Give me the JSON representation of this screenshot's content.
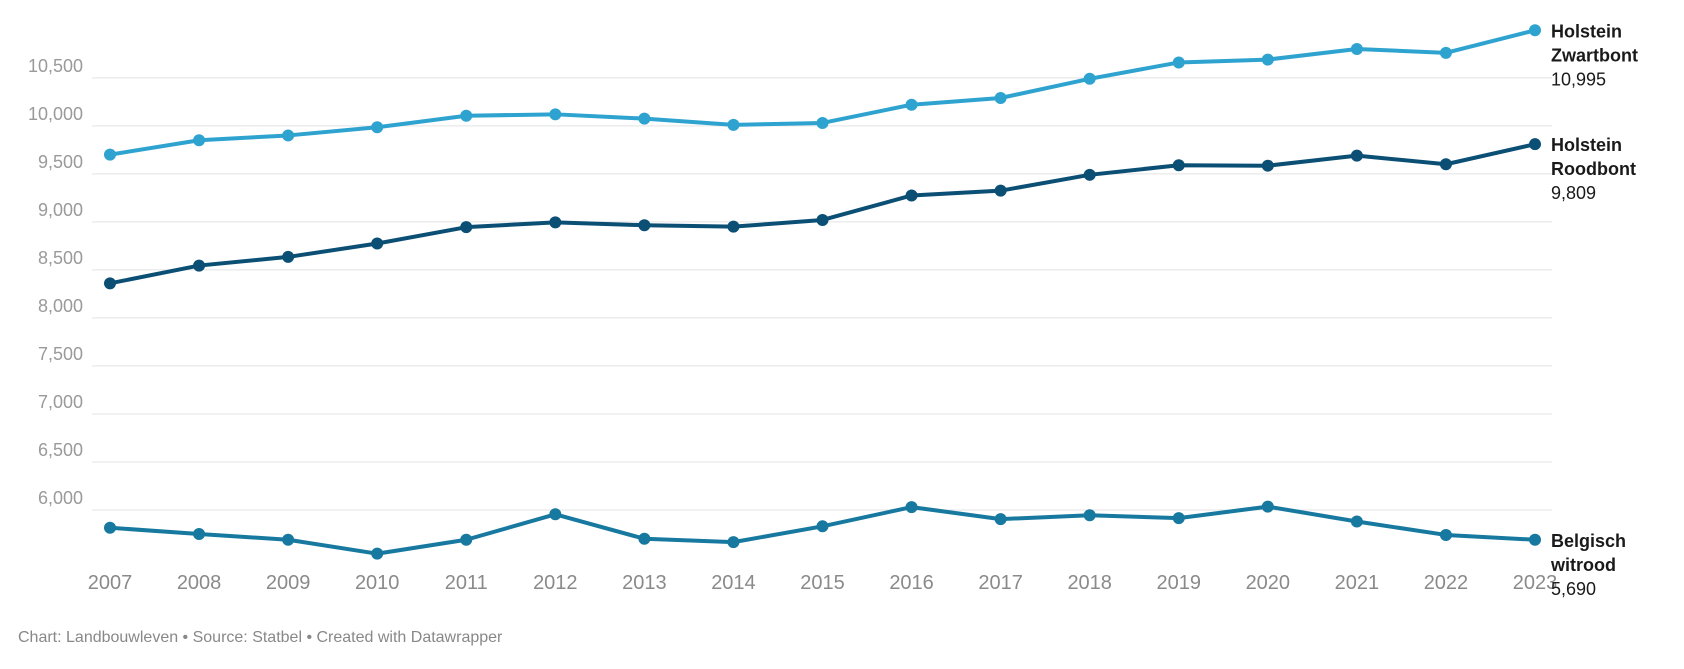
{
  "chart_data": {
    "type": "line",
    "x": [
      2007,
      2008,
      2009,
      2010,
      2011,
      2012,
      2013,
      2014,
      2015,
      2016,
      2017,
      2018,
      2019,
      2020,
      2021,
      2022,
      2023
    ],
    "x_tick_labels": [
      "2007",
      "2008",
      "2009",
      "2010",
      "2011",
      "2012",
      "2013",
      "2014",
      "2015",
      "2016",
      "2017",
      "2018",
      "2019",
      "2020",
      "2021",
      "2022",
      "2023"
    ],
    "y_ticks": [
      6000,
      6500,
      7000,
      7500,
      8000,
      8500,
      9000,
      9500,
      10000,
      10500
    ],
    "y_tick_labels": [
      "6,000",
      "6,500",
      "7,000",
      "7,500",
      "8,000",
      "8,500",
      "9,000",
      "9,500",
      "10,000",
      "10,500"
    ],
    "ylim": [
      5500,
      11050
    ],
    "grid": true,
    "series": [
      {
        "name_lines": [
          "Holstein",
          "Zwartbont"
        ],
        "end_label": "10,995",
        "color": "#2ea3cf",
        "values": [
          9700,
          9850,
          9900,
          9985,
          10105,
          10120,
          10075,
          10010,
          10030,
          10220,
          10290,
          10490,
          10660,
          10690,
          10800,
          10760,
          10995
        ]
      },
      {
        "name_lines": [
          "Holstein",
          "Roodbont"
        ],
        "end_label": "9,809",
        "color": "#0b4f75",
        "values": [
          8360,
          8545,
          8635,
          8775,
          8945,
          8995,
          8965,
          8950,
          9020,
          9275,
          9325,
          9490,
          9590,
          9585,
          9690,
          9600,
          9809
        ]
      },
      {
        "name_lines": [
          "Belgisch",
          "witrood"
        ],
        "end_label": "5,690",
        "color": "#17799f",
        "values": [
          5815,
          5750,
          5690,
          5545,
          5690,
          5955,
          5700,
          5665,
          5830,
          6030,
          5905,
          5945,
          5915,
          6035,
          5880,
          5740,
          5690
        ]
      }
    ]
  },
  "footer": "Chart: Landbouwleven • Source: Statbel • Created with Datawrapper"
}
